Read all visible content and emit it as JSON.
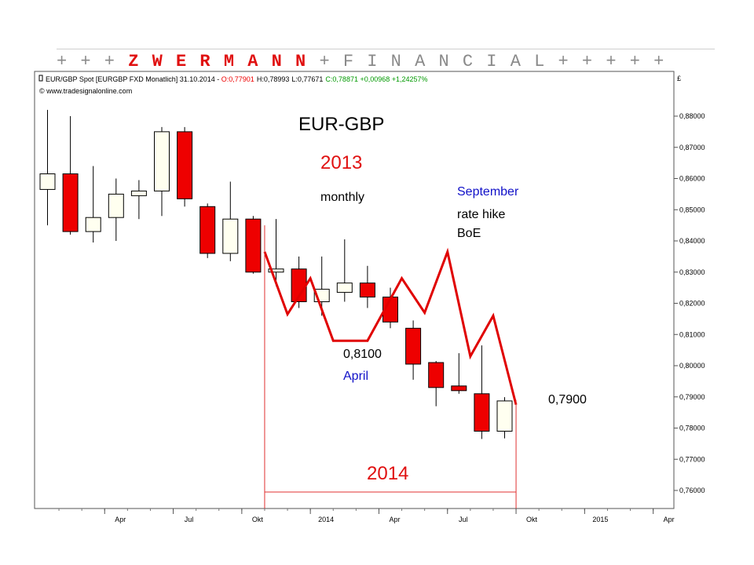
{
  "banner": {
    "prefix": "+ + + ",
    "brand": "Z W E R M A N N",
    "suffix": " + F I N A N C I A L + + + + +"
  },
  "chart_header": {
    "instrument": "EUR/GBP Spot [EURGBP FXD  Monatlich] 31.10.2014 - ",
    "open": "O:0,77901",
    "high": "H:0,78993",
    "low": "L:0,77671",
    "close": "C:0,78871 +0,00968 +1,24257%",
    "copyright": "© www.tradesignalonline.com",
    "currency": "£"
  },
  "annotations": {
    "title": "EUR-GBP",
    "year_2013": "2013",
    "monthly": "monthly",
    "september": "September",
    "rate_hike": "rate hike",
    "boe": "BoE",
    "level_8100": "0,8100",
    "april": "April",
    "level_7900": "0,7900",
    "year_2014": "2014"
  },
  "colors": {
    "bear": "#ee0000",
    "bull": "#fffff0",
    "overlay": "#e00000",
    "blue_text": "#1010c8",
    "red_text": "#e01010"
  },
  "chart_data": {
    "type": "candlestick",
    "ylim": [
      0.752,
      0.886
    ],
    "y_ticks": [
      "0,88000",
      "0,87000",
      "0,86000",
      "0,85000",
      "0,84000",
      "0,83000",
      "0,82000",
      "0,81000",
      "0,80000",
      "0,79000",
      "0,78000",
      "0,77000",
      "0,76000"
    ],
    "x_ticks": [
      {
        "label": "Apr",
        "month": 3
      },
      {
        "label": "Jul",
        "month": 6
      },
      {
        "label": "Okt",
        "month": 9
      },
      {
        "label": "2014",
        "month": 12
      },
      {
        "label": "Apr",
        "month": 15
      },
      {
        "label": "Jul",
        "month": 18
      },
      {
        "label": "Okt",
        "month": 21
      },
      {
        "label": "2015",
        "month": 24
      },
      {
        "label": "Apr",
        "month": 27
      }
    ],
    "candles": [
      {
        "month": "2013-01",
        "open": 0.8565,
        "high": 0.882,
        "low": 0.845,
        "close": 0.8615
      },
      {
        "month": "2013-02",
        "open": 0.8615,
        "high": 0.88,
        "low": 0.842,
        "close": 0.843
      },
      {
        "month": "2013-03",
        "open": 0.843,
        "high": 0.864,
        "low": 0.8395,
        "close": 0.8475
      },
      {
        "month": "2013-04",
        "open": 0.8475,
        "high": 0.86,
        "low": 0.84,
        "close": 0.855
      },
      {
        "month": "2013-05",
        "open": 0.8545,
        "high": 0.8595,
        "low": 0.847,
        "close": 0.856
      },
      {
        "month": "2013-06",
        "open": 0.856,
        "high": 0.8765,
        "low": 0.848,
        "close": 0.875
      },
      {
        "month": "2013-07",
        "open": 0.875,
        "high": 0.8765,
        "low": 0.851,
        "close": 0.8535
      },
      {
        "month": "2013-08",
        "open": 0.851,
        "high": 0.852,
        "low": 0.8345,
        "close": 0.836
      },
      {
        "month": "2013-09",
        "open": 0.836,
        "high": 0.859,
        "low": 0.8335,
        "close": 0.847
      },
      {
        "month": "2013-10",
        "open": 0.847,
        "high": 0.848,
        "low": 0.8295,
        "close": 0.83
      },
      {
        "month": "2013-11",
        "open": 0.83,
        "high": 0.847,
        "low": 0.8255,
        "close": 0.831
      },
      {
        "month": "2013-12",
        "open": 0.831,
        "high": 0.835,
        "low": 0.8185,
        "close": 0.8205
      },
      {
        "month": "2014-01",
        "open": 0.8205,
        "high": 0.835,
        "low": 0.816,
        "close": 0.8245
      },
      {
        "month": "2014-02",
        "open": 0.8235,
        "high": 0.8405,
        "low": 0.8205,
        "close": 0.8265
      },
      {
        "month": "2014-03",
        "open": 0.8265,
        "high": 0.832,
        "low": 0.8185,
        "close": 0.822
      },
      {
        "month": "2014-04",
        "open": 0.822,
        "high": 0.825,
        "low": 0.812,
        "close": 0.814
      },
      {
        "month": "2014-05",
        "open": 0.812,
        "high": 0.8145,
        "low": 0.7955,
        "close": 0.8005
      },
      {
        "month": "2014-06",
        "open": 0.801,
        "high": 0.8015,
        "low": 0.787,
        "close": 0.793
      },
      {
        "month": "2014-07",
        "open": 0.7935,
        "high": 0.804,
        "low": 0.791,
        "close": 0.792
      },
      {
        "month": "2014-08",
        "open": 0.791,
        "high": 0.8065,
        "low": 0.7765,
        "close": 0.779
      },
      {
        "month": "2014-09",
        "open": 0.779,
        "high": 0.7899,
        "low": 0.7767,
        "close": 0.7887
      }
    ],
    "overlay_line": [
      {
        "month": 9.5,
        "y": 0.8365
      },
      {
        "month": 10.5,
        "y": 0.8165
      },
      {
        "month": 11.5,
        "y": 0.828
      },
      {
        "month": 12.5,
        "y": 0.808
      },
      {
        "month": 14,
        "y": 0.808
      },
      {
        "month": 15.5,
        "y": 0.828
      },
      {
        "month": 16.5,
        "y": 0.817
      },
      {
        "month": 17.5,
        "y": 0.8365
      },
      {
        "month": 18.5,
        "y": 0.803
      },
      {
        "month": 19.5,
        "y": 0.816
      },
      {
        "month": 20.5,
        "y": 0.7875
      }
    ],
    "bracket": {
      "start_month": 9.5,
      "end_month": 20.5,
      "level": 0.7595,
      "top": 0.845
    }
  }
}
